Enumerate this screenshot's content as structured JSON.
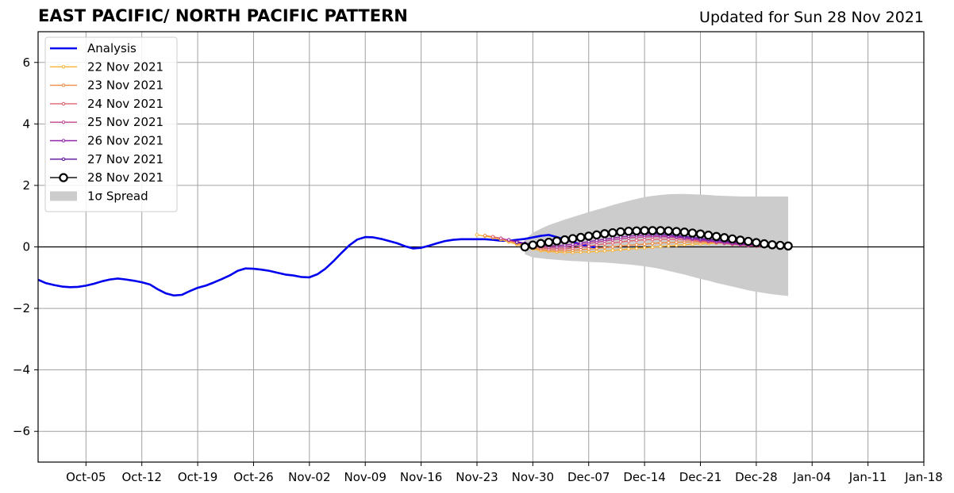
{
  "chart_data": {
    "type": "line",
    "title": "EAST PACIFIC/ NORTH PACIFIC PATTERN",
    "subtitle": "Updated for Sun 28 Nov 2021",
    "xlabel": "",
    "ylabel": "",
    "xlim": [
      "2021-09-29",
      "2022-01-18"
    ],
    "ylim": [
      -7,
      7
    ],
    "yticks": [
      -6,
      -4,
      -2,
      0,
      2,
      4,
      6
    ],
    "xticks": [
      {
        "date": "2021-10-05",
        "label": "Oct-05"
      },
      {
        "date": "2021-10-12",
        "label": "Oct-12"
      },
      {
        "date": "2021-10-19",
        "label": "Oct-19"
      },
      {
        "date": "2021-10-26",
        "label": "Oct-26"
      },
      {
        "date": "2021-11-02",
        "label": "Nov-02"
      },
      {
        "date": "2021-11-09",
        "label": "Nov-09"
      },
      {
        "date": "2021-11-16",
        "label": "Nov-16"
      },
      {
        "date": "2021-11-23",
        "label": "Nov-23"
      },
      {
        "date": "2021-11-30",
        "label": "Nov-30"
      },
      {
        "date": "2021-12-07",
        "label": "Dec-07"
      },
      {
        "date": "2021-12-14",
        "label": "Dec-14"
      },
      {
        "date": "2021-12-21",
        "label": "Dec-21"
      },
      {
        "date": "2021-12-28",
        "label": "Dec-28"
      },
      {
        "date": "2022-01-04",
        "label": "Jan-04"
      },
      {
        "date": "2022-01-11",
        "label": "Jan-11"
      },
      {
        "date": "2022-01-18",
        "label": "Jan-18"
      }
    ],
    "grid": true,
    "zero_line": true,
    "legend_position": "top-left",
    "legend": [
      "Analysis",
      "22 Nov 2021",
      "23 Nov 2021",
      "24 Nov 2021",
      "25 Nov 2021",
      "26 Nov 2021",
      "27 Nov 2021",
      "28 Nov 2021",
      "1σ Spread"
    ],
    "analysis": {
      "name": "Analysis",
      "color": "#0000ee",
      "start": "2021-09-29",
      "values": [
        -1.07,
        -1.18,
        -1.24,
        -1.29,
        -1.31,
        -1.3,
        -1.26,
        -1.2,
        -1.12,
        -1.06,
        -1.03,
        -1.06,
        -1.1,
        -1.15,
        -1.22,
        -1.38,
        -1.51,
        -1.58,
        -1.56,
        -1.44,
        -1.33,
        -1.26,
        -1.16,
        -1.05,
        -0.93,
        -0.78,
        -0.7,
        -0.71,
        -0.74,
        -0.78,
        -0.84,
        -0.9,
        -0.93,
        -0.98,
        -0.99,
        -0.89,
        -0.71,
        -0.47,
        -0.2,
        0.05,
        0.24,
        0.32,
        0.31,
        0.26,
        0.19,
        0.12,
        0.02,
        -0.05,
        -0.03,
        0.04,
        0.12,
        0.19,
        0.23,
        0.25,
        0.25,
        0.25,
        0.25,
        0.23,
        0.2,
        0.2,
        0.23,
        0.26,
        0.31,
        0.36,
        0.39,
        0.32,
        0.24,
        0.16,
        0.08,
        0.02,
        -0.02
      ]
    },
    "forecasts": [
      {
        "name": "22 Nov 2021",
        "color": "#f8b436",
        "start": "2021-11-23",
        "values": [
          0.39,
          0.35,
          0.3,
          0.24,
          0.16,
          0.08,
          0.0,
          -0.07,
          -0.12,
          -0.15,
          -0.17,
          -0.18,
          -0.18,
          -0.17,
          -0.16,
          -0.15,
          -0.13,
          -0.11,
          -0.09,
          -0.07,
          -0.05,
          -0.03,
          -0.01,
          0.01,
          0.03,
          0.05,
          0.07,
          0.09,
          0.1,
          0.11,
          0.12,
          0.12,
          0.12,
          0.11,
          0.1
        ]
      },
      {
        "name": "23 Nov 2021",
        "color": "#ef8a43",
        "start": "2021-11-24",
        "values": [
          0.37,
          0.33,
          0.27,
          0.2,
          0.12,
          0.04,
          -0.03,
          -0.08,
          -0.11,
          -0.12,
          -0.12,
          -0.11,
          -0.09,
          -0.07,
          -0.05,
          -0.02,
          0.0,
          0.03,
          0.05,
          0.07,
          0.09,
          0.11,
          0.13,
          0.14,
          0.15,
          0.16,
          0.16,
          0.16,
          0.15,
          0.14,
          0.12,
          0.1,
          0.08,
          0.06,
          0.04
        ]
      },
      {
        "name": "24 Nov 2021",
        "color": "#e06470",
        "start": "2021-11-25",
        "values": [
          0.33,
          0.28,
          0.22,
          0.15,
          0.08,
          0.02,
          -0.03,
          -0.06,
          -0.07,
          -0.06,
          -0.04,
          -0.01,
          0.02,
          0.06,
          0.1,
          0.13,
          0.16,
          0.19,
          0.21,
          0.23,
          0.24,
          0.25,
          0.25,
          0.24,
          0.23,
          0.21,
          0.19,
          0.17,
          0.14,
          0.11,
          0.08,
          0.06,
          0.04,
          0.02,
          0.01
        ]
      },
      {
        "name": "25 Nov 2021",
        "color": "#c04391",
        "start": "2021-11-26",
        "values": [
          0.28,
          0.22,
          0.16,
          0.1,
          0.05,
          0.01,
          -0.01,
          -0.01,
          0.0,
          0.03,
          0.07,
          0.11,
          0.15,
          0.19,
          0.23,
          0.26,
          0.29,
          0.31,
          0.32,
          0.33,
          0.33,
          0.32,
          0.3,
          0.28,
          0.25,
          0.22,
          0.19,
          0.16,
          0.13,
          0.1,
          0.07,
          0.05,
          0.03,
          0.02,
          0.01
        ]
      },
      {
        "name": "26 Nov 2021",
        "color": "#9023a8",
        "start": "2021-11-27",
        "values": [
          0.23,
          0.17,
          0.12,
          0.08,
          0.05,
          0.04,
          0.04,
          0.06,
          0.09,
          0.13,
          0.17,
          0.21,
          0.25,
          0.29,
          0.32,
          0.35,
          0.37,
          0.38,
          0.38,
          0.37,
          0.35,
          0.33,
          0.3,
          0.27,
          0.24,
          0.21,
          0.18,
          0.15,
          0.12,
          0.09,
          0.07,
          0.05,
          0.03,
          0.02,
          0.01
        ]
      },
      {
        "name": "27 Nov 2021",
        "color": "#580f9e",
        "start": "2021-11-28",
        "values": [
          0.15,
          0.11,
          0.09,
          0.09,
          0.11,
          0.14,
          0.18,
          0.22,
          0.26,
          0.3,
          0.34,
          0.37,
          0.4,
          0.42,
          0.43,
          0.44,
          0.44,
          0.43,
          0.42,
          0.4,
          0.37,
          0.34,
          0.31,
          0.28,
          0.25,
          0.22,
          0.19,
          0.16,
          0.13,
          0.1,
          0.08,
          0.06,
          0.04,
          0.03,
          0.02
        ]
      },
      {
        "name": "28 Nov 2021",
        "color": "#000000",
        "start": "2021-11-29",
        "values": [
          0.0,
          0.06,
          0.11,
          0.15,
          0.19,
          0.23,
          0.27,
          0.31,
          0.35,
          0.39,
          0.43,
          0.46,
          0.49,
          0.51,
          0.52,
          0.53,
          0.53,
          0.53,
          0.52,
          0.5,
          0.48,
          0.45,
          0.42,
          0.38,
          0.34,
          0.3,
          0.26,
          0.22,
          0.18,
          0.14,
          0.1,
          0.07,
          0.05,
          0.03
        ]
      }
    ],
    "spread": {
      "name": "1σ Spread",
      "color": "#cccccc",
      "start": "2021-11-29",
      "upper": [
        0.24,
        0.46,
        0.59,
        0.71,
        0.8,
        0.89,
        0.97,
        1.05,
        1.13,
        1.21,
        1.28,
        1.36,
        1.43,
        1.5,
        1.56,
        1.62,
        1.66,
        1.69,
        1.71,
        1.72,
        1.72,
        1.71,
        1.7,
        1.69,
        1.67,
        1.66,
        1.65,
        1.64,
        1.64,
        1.64,
        1.64,
        1.64,
        1.64,
        1.64
      ],
      "lower": [
        -0.24,
        -0.34,
        -0.37,
        -0.4,
        -0.42,
        -0.44,
        -0.46,
        -0.47,
        -0.49,
        -0.5,
        -0.51,
        -0.53,
        -0.55,
        -0.57,
        -0.6,
        -0.63,
        -0.67,
        -0.72,
        -0.78,
        -0.84,
        -0.9,
        -0.97,
        -1.04,
        -1.1,
        -1.17,
        -1.23,
        -1.29,
        -1.35,
        -1.41,
        -1.46,
        -1.5,
        -1.54,
        -1.57,
        -1.6
      ]
    }
  }
}
